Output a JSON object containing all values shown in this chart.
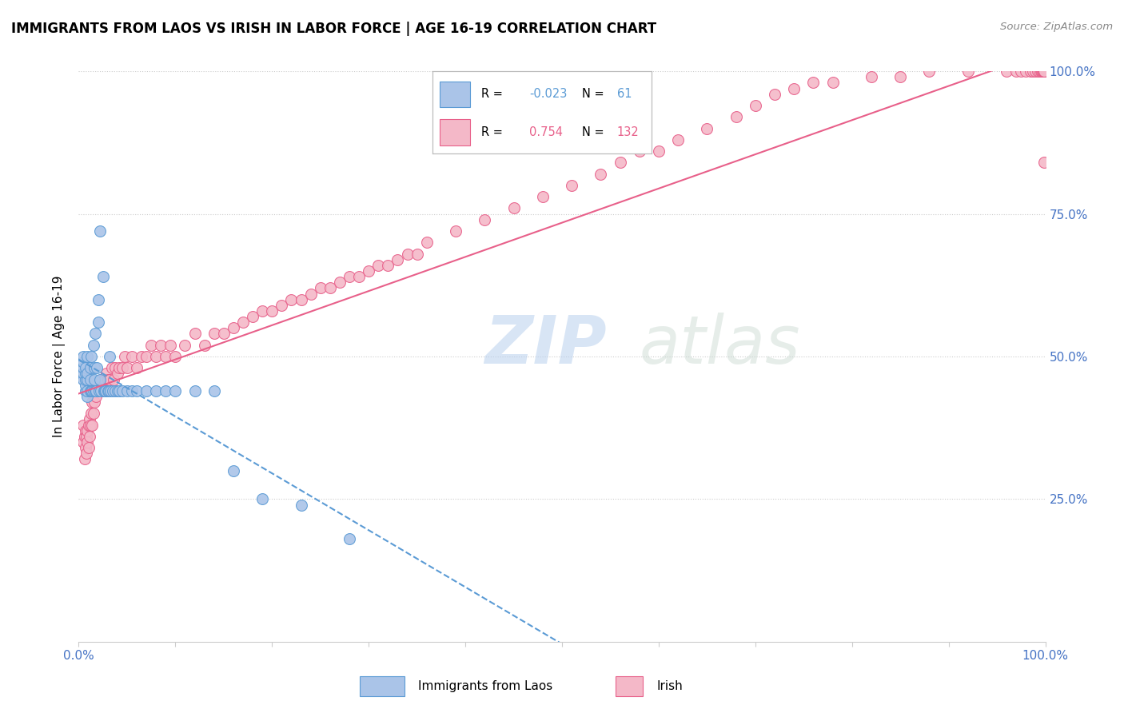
{
  "title": "IMMIGRANTS FROM LAOS VS IRISH IN LABOR FORCE | AGE 16-19 CORRELATION CHART",
  "source": "Source: ZipAtlas.com",
  "ylabel": "In Labor Force | Age 16-19",
  "xlim": [
    0.0,
    1.0
  ],
  "ylim": [
    0.0,
    1.0
  ],
  "legend_laos_R": "-0.023",
  "legend_laos_N": "61",
  "legend_irish_R": "0.754",
  "legend_irish_N": "132",
  "laos_fill_color": "#aac4e8",
  "irish_fill_color": "#f4b8c8",
  "laos_edge_color": "#5b9bd5",
  "irish_edge_color": "#e8608a",
  "laos_line_color": "#5b9bd5",
  "irish_line_color": "#e8608a",
  "grid_color": "#cccccc",
  "background_color": "#ffffff",
  "watermark": "ZIPatlas",
  "tick_label_color": "#4472c4",
  "laos_scatter_x": [
    0.005,
    0.005,
    0.005,
    0.005,
    0.005,
    0.007,
    0.007,
    0.007,
    0.007,
    0.007,
    0.009,
    0.009,
    0.009,
    0.009,
    0.009,
    0.012,
    0.012,
    0.012,
    0.013,
    0.013,
    0.014,
    0.015,
    0.015,
    0.016,
    0.016,
    0.017,
    0.017,
    0.018,
    0.019,
    0.02,
    0.02,
    0.021,
    0.022,
    0.022,
    0.023,
    0.025,
    0.026,
    0.027,
    0.028,
    0.03,
    0.031,
    0.032,
    0.033,
    0.035,
    0.038,
    0.04,
    0.042,
    0.045,
    0.05,
    0.055,
    0.06,
    0.07,
    0.08,
    0.09,
    0.1,
    0.12,
    0.14,
    0.16,
    0.19,
    0.23,
    0.28
  ],
  "laos_scatter_y": [
    0.46,
    0.47,
    0.48,
    0.49,
    0.5,
    0.44,
    0.45,
    0.46,
    0.47,
    0.48,
    0.43,
    0.44,
    0.46,
    0.47,
    0.5,
    0.44,
    0.46,
    0.48,
    0.44,
    0.5,
    0.44,
    0.44,
    0.52,
    0.46,
    0.48,
    0.44,
    0.54,
    0.44,
    0.48,
    0.56,
    0.6,
    0.44,
    0.46,
    0.72,
    0.44,
    0.64,
    0.44,
    0.44,
    0.44,
    0.44,
    0.44,
    0.5,
    0.44,
    0.44,
    0.44,
    0.44,
    0.44,
    0.44,
    0.44,
    0.44,
    0.44,
    0.44,
    0.44,
    0.44,
    0.44,
    0.44,
    0.44,
    0.3,
    0.25,
    0.24,
    0.18
  ],
  "irish_scatter_x": [
    0.005,
    0.005,
    0.006,
    0.006,
    0.007,
    0.007,
    0.008,
    0.008,
    0.009,
    0.009,
    0.01,
    0.01,
    0.011,
    0.011,
    0.012,
    0.013,
    0.014,
    0.014,
    0.015,
    0.015,
    0.016,
    0.017,
    0.018,
    0.019,
    0.02,
    0.021,
    0.022,
    0.023,
    0.024,
    0.025,
    0.026,
    0.027,
    0.028,
    0.029,
    0.03,
    0.032,
    0.034,
    0.036,
    0.038,
    0.04,
    0.042,
    0.045,
    0.048,
    0.05,
    0.055,
    0.06,
    0.065,
    0.07,
    0.075,
    0.08,
    0.085,
    0.09,
    0.095,
    0.1,
    0.11,
    0.12,
    0.13,
    0.14,
    0.15,
    0.16,
    0.17,
    0.18,
    0.19,
    0.2,
    0.21,
    0.22,
    0.23,
    0.24,
    0.25,
    0.26,
    0.27,
    0.28,
    0.29,
    0.3,
    0.31,
    0.32,
    0.33,
    0.34,
    0.35,
    0.36,
    0.39,
    0.42,
    0.45,
    0.48,
    0.51,
    0.54,
    0.56,
    0.58,
    0.6,
    0.62,
    0.65,
    0.68,
    0.7,
    0.72,
    0.74,
    0.76,
    0.78,
    0.82,
    0.85,
    0.88,
    0.92,
    0.96,
    0.97,
    0.975,
    0.98,
    0.985,
    0.987,
    0.99,
    0.992,
    0.994,
    0.995,
    0.996,
    0.997,
    0.998,
    0.999,
    0.999,
    0.999,
    0.999,
    0.999,
    0.999,
    0.999,
    0.999,
    0.999,
    0.999,
    0.999,
    0.999,
    0.999,
    0.999,
    0.999,
    0.999,
    0.999,
    0.999
  ],
  "irish_scatter_y": [
    0.35,
    0.38,
    0.32,
    0.36,
    0.34,
    0.37,
    0.33,
    0.36,
    0.35,
    0.37,
    0.34,
    0.38,
    0.36,
    0.39,
    0.38,
    0.4,
    0.38,
    0.42,
    0.4,
    0.44,
    0.42,
    0.44,
    0.43,
    0.44,
    0.44,
    0.45,
    0.44,
    0.46,
    0.44,
    0.46,
    0.44,
    0.46,
    0.44,
    0.47,
    0.46,
    0.46,
    0.48,
    0.46,
    0.48,
    0.47,
    0.48,
    0.48,
    0.5,
    0.48,
    0.5,
    0.48,
    0.5,
    0.5,
    0.52,
    0.5,
    0.52,
    0.5,
    0.52,
    0.5,
    0.52,
    0.54,
    0.52,
    0.54,
    0.54,
    0.55,
    0.56,
    0.57,
    0.58,
    0.58,
    0.59,
    0.6,
    0.6,
    0.61,
    0.62,
    0.62,
    0.63,
    0.64,
    0.64,
    0.65,
    0.66,
    0.66,
    0.67,
    0.68,
    0.68,
    0.7,
    0.72,
    0.74,
    0.76,
    0.78,
    0.8,
    0.82,
    0.84,
    0.86,
    0.86,
    0.88,
    0.9,
    0.92,
    0.94,
    0.96,
    0.97,
    0.98,
    0.98,
    0.99,
    0.99,
    1.0,
    1.0,
    1.0,
    1.0,
    1.0,
    1.0,
    1.0,
    1.0,
    1.0,
    1.0,
    1.0,
    1.0,
    1.0,
    1.0,
    1.0,
    1.0,
    1.0,
    1.0,
    1.0,
    1.0,
    1.0,
    1.0,
    1.0,
    1.0,
    1.0,
    1.0,
    1.0,
    1.0,
    1.0,
    1.0,
    1.0,
    1.0,
    0.84
  ]
}
